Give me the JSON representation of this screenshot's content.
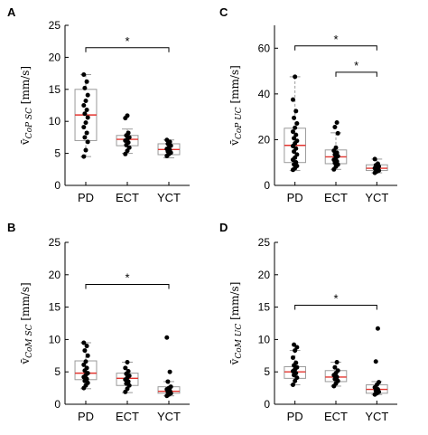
{
  "chart_data": [
    {
      "type": "box",
      "panel_label": "A",
      "categories": [
        "PD",
        "ECT",
        "YCT"
      ],
      "ylabel": "v̄CoP SC [mm/s]",
      "ylabel_parts": [
        "v̄",
        "CoP SC",
        " [mm/s]"
      ],
      "ylim": [
        0,
        25
      ],
      "yticks": [
        0,
        5,
        10,
        15,
        20,
        25
      ],
      "boxes": [
        {
          "q1": 7,
          "median": 11,
          "q3": 15,
          "whisker_low": 4.5,
          "whisker_high": 17.3
        },
        {
          "q1": 6.2,
          "median": 7.2,
          "q3": 7.8,
          "whisker_low": 5,
          "whisker_high": 8.8
        },
        {
          "q1": 4.8,
          "median": 5.6,
          "q3": 6.5,
          "whisker_low": 4.3,
          "whisker_high": 7.1
        }
      ],
      "points": [
        [
          4.5,
          5.5,
          6.8,
          7.5,
          8.2,
          9.1,
          9.8,
          10.6,
          11.2,
          11.8,
          12.5,
          13.2,
          14.1,
          15.2,
          16.2,
          17.3
        ],
        [
          4.9,
          5.4,
          5.9,
          6.3,
          6.7,
          7,
          7.2,
          7.5,
          7.8,
          8.2,
          10.5,
          10.9
        ],
        [
          4.6,
          4.9,
          5.1,
          5.3,
          5.5,
          5.7,
          5.9,
          6.2,
          6.5,
          6.8,
          7.1
        ]
      ],
      "significance": [
        {
          "from": 0,
          "to": 2,
          "y": 21.5,
          "label": "*"
        }
      ]
    },
    {
      "type": "box",
      "panel_label": "C",
      "categories": [
        "PD",
        "ECT",
        "YCT"
      ],
      "ylabel": "v̄CoP UC [mm/s]",
      "ylabel_parts": [
        "v̄",
        "CoP UC",
        " [mm/s]"
      ],
      "ylim": [
        0,
        70
      ],
      "yticks": [
        0,
        20,
        40,
        60
      ],
      "boxes": [
        {
          "q1": 10,
          "median": 17.5,
          "q3": 25,
          "whisker_low": 6.5,
          "whisker_high": 47.5
        },
        {
          "q1": 9.5,
          "median": 12.5,
          "q3": 15.5,
          "whisker_low": 7,
          "whisker_high": 23
        },
        {
          "q1": 6.5,
          "median": 7.5,
          "q3": 9,
          "whisker_low": 5.5,
          "whisker_high": 11.5
        }
      ],
      "points": [
        [
          6.8,
          7.5,
          8.5,
          9.2,
          10.1,
          11.2,
          12.1,
          13.5,
          14.8,
          16.1,
          17.2,
          18.4,
          19.5,
          20.6,
          22.1,
          23.5,
          25.2,
          27.1,
          29.5,
          32.5,
          37.5,
          47.5
        ],
        [
          7,
          8.2,
          9.1,
          9.8,
          10.5,
          11.2,
          12,
          12.8,
          13.5,
          14.3,
          15.2,
          16.5,
          22.8,
          25.5,
          27.5
        ],
        [
          5.5,
          6.1,
          6.5,
          6.9,
          7.2,
          7.5,
          7.9,
          8.3,
          8.8,
          9.5,
          11.5
        ]
      ],
      "significance": [
        {
          "from": 0,
          "to": 2,
          "y": 61,
          "label": "*"
        },
        {
          "from": 1,
          "to": 2,
          "y": 49.5,
          "label": "*"
        }
      ]
    },
    {
      "type": "box",
      "panel_label": "B",
      "categories": [
        "PD",
        "ECT",
        "YCT"
      ],
      "ylabel": "v̄CoM SC [mm/s]",
      "ylabel_parts": [
        "v̄",
        "CoM SC",
        " [mm/s]"
      ],
      "ylim": [
        0,
        25
      ],
      "yticks": [
        0,
        5,
        10,
        15,
        20,
        25
      ],
      "boxes": [
        {
          "q1": 3.8,
          "median": 4.8,
          "q3": 6.7,
          "whisker_low": 2.4,
          "whisker_high": 9.5
        },
        {
          "q1": 2.9,
          "median": 4,
          "q3": 4.8,
          "whisker_low": 1.8,
          "whisker_high": 6.5
        },
        {
          "q1": 1.7,
          "median": 2,
          "q3": 2.7,
          "whisker_low": 1.3,
          "whisker_high": 3.5
        }
      ],
      "points": [
        [
          2.5,
          2.9,
          3.3,
          3.6,
          3.9,
          4.2,
          4.5,
          4.8,
          5.2,
          5.6,
          6.1,
          6.6,
          7.5,
          8.3,
          9,
          9.5
        ],
        [
          1.9,
          2.4,
          2.9,
          3.2,
          3.5,
          3.8,
          4.1,
          4.4,
          4.7,
          5.1,
          5.6,
          6.5
        ],
        [
          1.3,
          1.5,
          1.7,
          1.9,
          2.1,
          2.3,
          2.5,
          2.7,
          3.5,
          5,
          10.3
        ]
      ],
      "significance": [
        {
          "from": 0,
          "to": 2,
          "y": 18.5,
          "label": "*"
        }
      ]
    },
    {
      "type": "box",
      "panel_label": "D",
      "categories": [
        "PD",
        "ECT",
        "YCT"
      ],
      "ylabel": "v̄CoM UC [mm/s]",
      "ylabel_parts": [
        "v̄",
        "CoM UC",
        " [mm/s]"
      ],
      "ylim": [
        0,
        25
      ],
      "yticks": [
        0,
        5,
        10,
        15,
        20,
        25
      ],
      "boxes": [
        {
          "q1": 4,
          "median": 5,
          "q3": 5.8,
          "whisker_low": 3,
          "whisker_high": 8.3
        },
        {
          "q1": 3.5,
          "median": 4.2,
          "q3": 5.2,
          "whisker_low": 2.8,
          "whisker_high": 6.5
        },
        {
          "q1": 1.7,
          "median": 2.3,
          "q3": 3,
          "whisker_low": 1.5,
          "whisker_high": 3.5
        }
      ],
      "points": [
        [
          3,
          3.6,
          4.1,
          4.5,
          4.8,
          5.1,
          5.4,
          5.7,
          6,
          6.4,
          7.2,
          8.3,
          8.8,
          9.2
        ],
        [
          2.8,
          3.2,
          3.6,
          3.9,
          4.2,
          4.5,
          4.8,
          5.2,
          5.7,
          6.5
        ],
        [
          1.5,
          1.7,
          1.9,
          2.1,
          2.3,
          2.6,
          3,
          3.4,
          6.6,
          11.7
        ]
      ],
      "significance": [
        {
          "from": 0,
          "to": 2,
          "y": 15.3,
          "label": "*"
        }
      ]
    }
  ],
  "style": {
    "box_stroke": "#9a9a9a",
    "median_color": "#e3342f",
    "point_color": "#000000",
    "axis_color": "#000000"
  }
}
